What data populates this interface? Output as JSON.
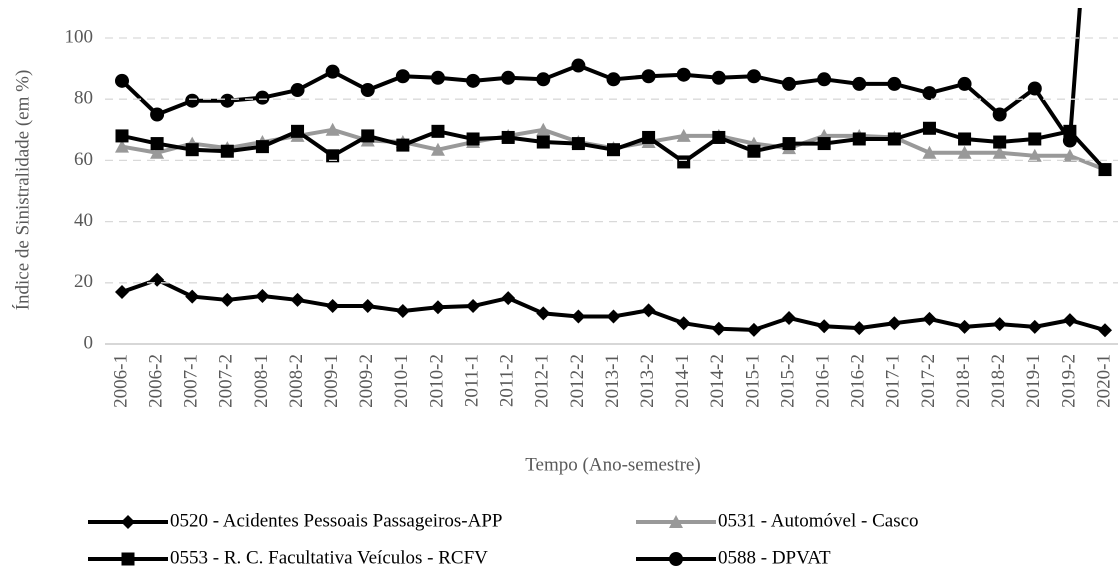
{
  "chart_data": {
    "type": "line",
    "y_label": "Índice de Sinistralidade (em %)",
    "x_label": "Tempo (Ano-semestre)",
    "categories": [
      "2006-1",
      "2006-2",
      "2007-1",
      "2007-2",
      "2008-1",
      "2008-2",
      "2009-1",
      "2009-2",
      "2010-1",
      "2010-2",
      "2011-1",
      "2011-2",
      "2012-1",
      "2012-2",
      "2013-1",
      "2013-2",
      "2014-1",
      "2014-2",
      "2015-1",
      "2015-2",
      "2016-1",
      "2016-2",
      "2017-1",
      "2017-2",
      "2018-1",
      "2018-2",
      "2019-1",
      "2019-2",
      "2020-1"
    ],
    "series": [
      {
        "name": "0520 - Acidentes Pessoais Passageiros-APP",
        "color": "#000000",
        "marker": "diamond",
        "values": [
          17,
          21,
          15.5,
          14.4,
          15.7,
          14.4,
          12.4,
          12.4,
          10.8,
          12,
          12.4,
          15,
          10,
          9,
          9,
          11,
          6.8,
          5,
          4.6,
          8.5,
          5.8,
          5.2,
          6.8,
          8.2,
          5.6,
          6.5,
          5.6,
          7.8,
          4.5
        ]
      },
      {
        "name": "0531 - Automóvel - Casco",
        "color": "#999999",
        "marker": "triangle",
        "values": [
          64.5,
          62.5,
          65.5,
          64,
          66,
          68,
          70,
          66.5,
          66,
          63.5,
          66,
          68,
          70,
          66,
          64,
          66,
          68,
          68,
          65.5,
          64,
          68,
          68,
          67.5,
          62.5,
          62.5,
          62.5,
          61.5,
          61.5,
          57
        ]
      },
      {
        "name": "0553 - R. C. Facultativa Veículos - RCFV",
        "color": "#000000",
        "marker": "square",
        "values": [
          68,
          65.5,
          63.5,
          63,
          64.5,
          69.5,
          61.5,
          68,
          65,
          69.5,
          67,
          67.5,
          66,
          65.5,
          63.5,
          67.5,
          59.5,
          67.5,
          63,
          65.5,
          65.5,
          67,
          67,
          70.5,
          67,
          66,
          67,
          69.5,
          57
        ]
      },
      {
        "name": "0588 - DPVAT",
        "color": "#000000",
        "marker": "circle",
        "values": [
          86,
          75,
          79.5,
          79.5,
          80.5,
          83,
          89,
          83,
          87.5,
          87,
          86,
          87,
          86.5,
          91,
          86.5,
          87.5,
          88,
          87,
          87.5,
          85,
          86.5,
          85,
          85,
          82,
          85,
          75,
          83.5,
          66.5,
          220
        ]
      }
    ],
    "ylim": [
      0,
      110
    ],
    "yticks": [
      0,
      20,
      40,
      60,
      80,
      100
    ],
    "grid": true
  }
}
